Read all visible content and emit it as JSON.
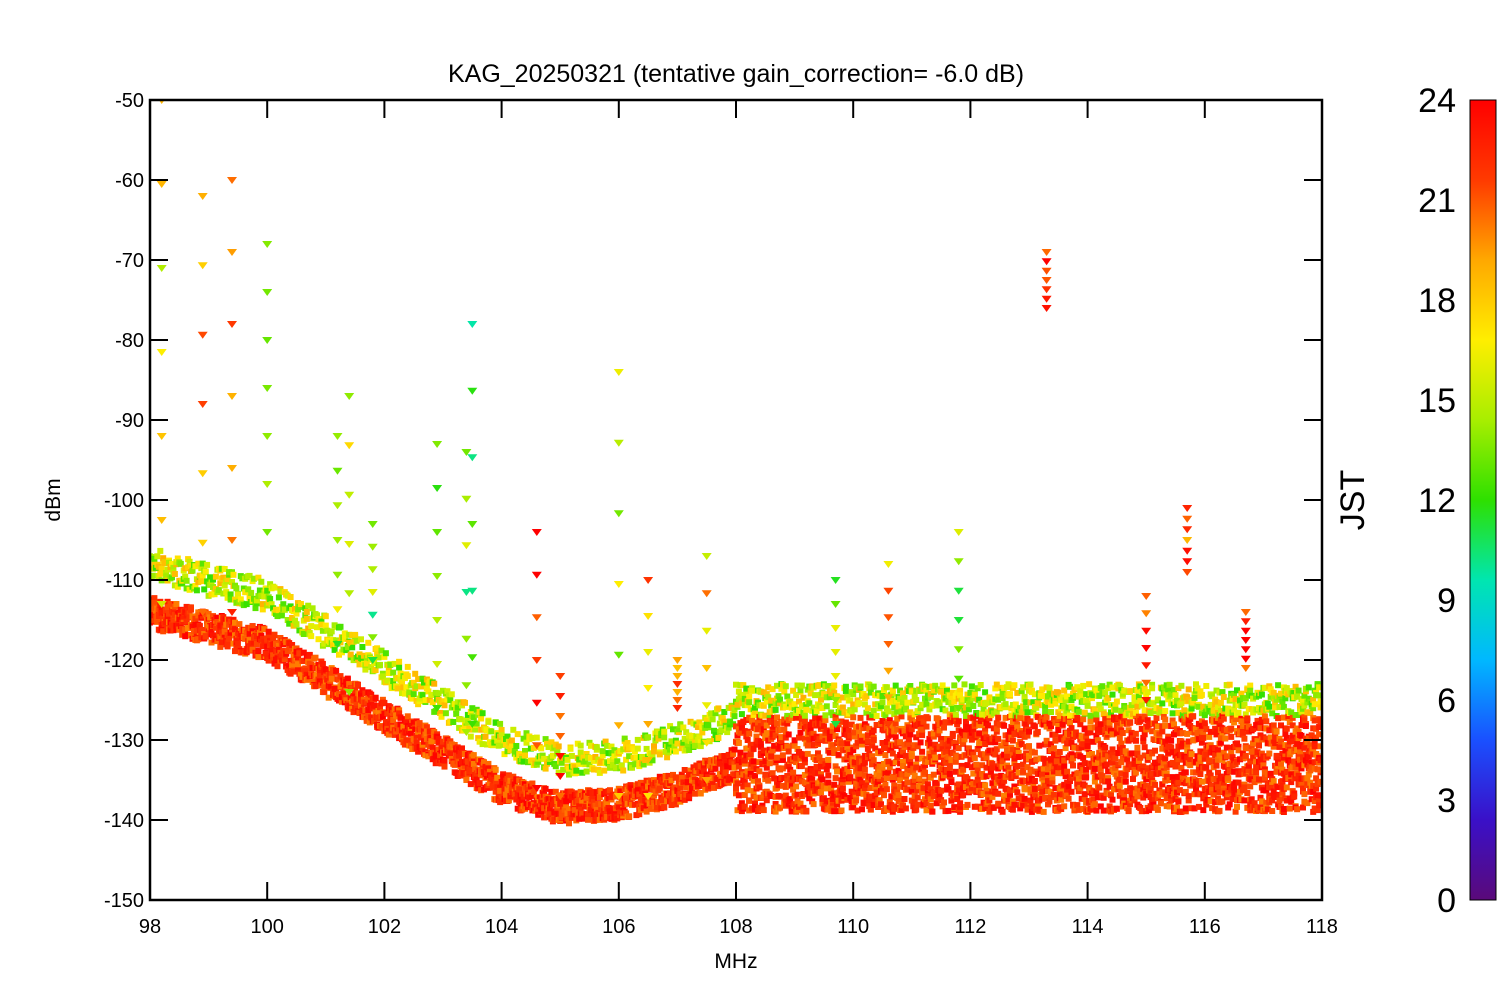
{
  "chart_data": {
    "type": "scatter",
    "title": "KAG_20250321 (tentative gain_correction= -6.0 dB)",
    "xlabel": "MHz",
    "ylabel": "dBm",
    "xlim": [
      98,
      118
    ],
    "ylim": [
      -150,
      -50
    ],
    "x_ticks": [
      98,
      100,
      102,
      104,
      106,
      108,
      110,
      112,
      114,
      116,
      118
    ],
    "y_ticks": [
      -50,
      -60,
      -70,
      -80,
      -90,
      -100,
      -110,
      -120,
      -130,
      -140,
      -150
    ],
    "grid": false,
    "marker": "star",
    "colorbar": {
      "label": "JST",
      "range": [
        0,
        24
      ],
      "ticks": [
        0,
        3,
        6,
        9,
        12,
        15,
        18,
        21,
        24
      ],
      "colormap": [
        "#5a0a7a",
        "#3a10c8",
        "#1a50ff",
        "#00b8ff",
        "#00e6b0",
        "#2ee000",
        "#a8ee00",
        "#ffee00",
        "#ffa800",
        "#ff3a00",
        "#ff0000"
      ]
    },
    "noise_floor": [
      {
        "x": 98,
        "y": -114
      },
      {
        "x": 100,
        "y": -118
      },
      {
        "x": 102,
        "y": -127
      },
      {
        "x": 104,
        "y": -136
      },
      {
        "x": 105,
        "y": -138.5
      },
      {
        "x": 106,
        "y": -138
      },
      {
        "x": 107,
        "y": -136
      },
      {
        "x": 108,
        "y": -133
      },
      {
        "x": 118,
        "y": -133
      }
    ],
    "signals": [
      {
        "x": 98.2,
        "y_top": -50,
        "y_bottom": -113,
        "jst": 16
      },
      {
        "x": 98.9,
        "y_top": -62,
        "y_bottom": -114,
        "jst": 19
      },
      {
        "x": 99.4,
        "y_top": -60,
        "y_bottom": -114,
        "jst": 20
      },
      {
        "x": 100.0,
        "y_top": -68,
        "y_bottom": -104,
        "jst": 14
      },
      {
        "x": 101.2,
        "y_top": -92,
        "y_bottom": -118,
        "jst": 14
      },
      {
        "x": 101.4,
        "y_top": -87,
        "y_bottom": -124,
        "jst": 16
      },
      {
        "x": 101.8,
        "y_top": -103,
        "y_bottom": -120,
        "jst": 13
      },
      {
        "x": 102.9,
        "y_top": -93,
        "y_bottom": -126,
        "jst": 13
      },
      {
        "x": 103.4,
        "y_top": -94,
        "y_bottom": -129,
        "jst": 13
      },
      {
        "x": 103.5,
        "y_top": -78,
        "y_bottom": -128,
        "jst": 12
      },
      {
        "x": 104.6,
        "y_top": -104,
        "y_bottom": -136,
        "jst": 23
      },
      {
        "x": 105.0,
        "y_top": -122,
        "y_bottom": -137,
        "jst": 23
      },
      {
        "x": 106.0,
        "y_top": -84,
        "y_bottom": -137,
        "jst": 16
      },
      {
        "x": 106.5,
        "y_top": -110,
        "y_bottom": -137,
        "jst": 19
      },
      {
        "x": 107.0,
        "y_top": -120,
        "y_bottom": -126,
        "jst": 21
      },
      {
        "x": 107.5,
        "y_top": -107,
        "y_bottom": -135,
        "jst": 18
      },
      {
        "x": 109.7,
        "y_top": -110,
        "y_bottom": -128,
        "jst": 14
      },
      {
        "x": 110.6,
        "y_top": -108,
        "y_bottom": -128,
        "jst": 19
      },
      {
        "x": 111.8,
        "y_top": -104,
        "y_bottom": -126,
        "jst": 14
      },
      {
        "x": 113.3,
        "y_top": -69,
        "y_bottom": -76,
        "jst": 23
      },
      {
        "x": 115.0,
        "y_top": -112,
        "y_bottom": -125,
        "jst": 23
      },
      {
        "x": 115.7,
        "y_top": -101,
        "y_bottom": -109,
        "jst": 21
      },
      {
        "x": 116.7,
        "y_top": -114,
        "y_bottom": -121,
        "jst": 23
      }
    ]
  }
}
